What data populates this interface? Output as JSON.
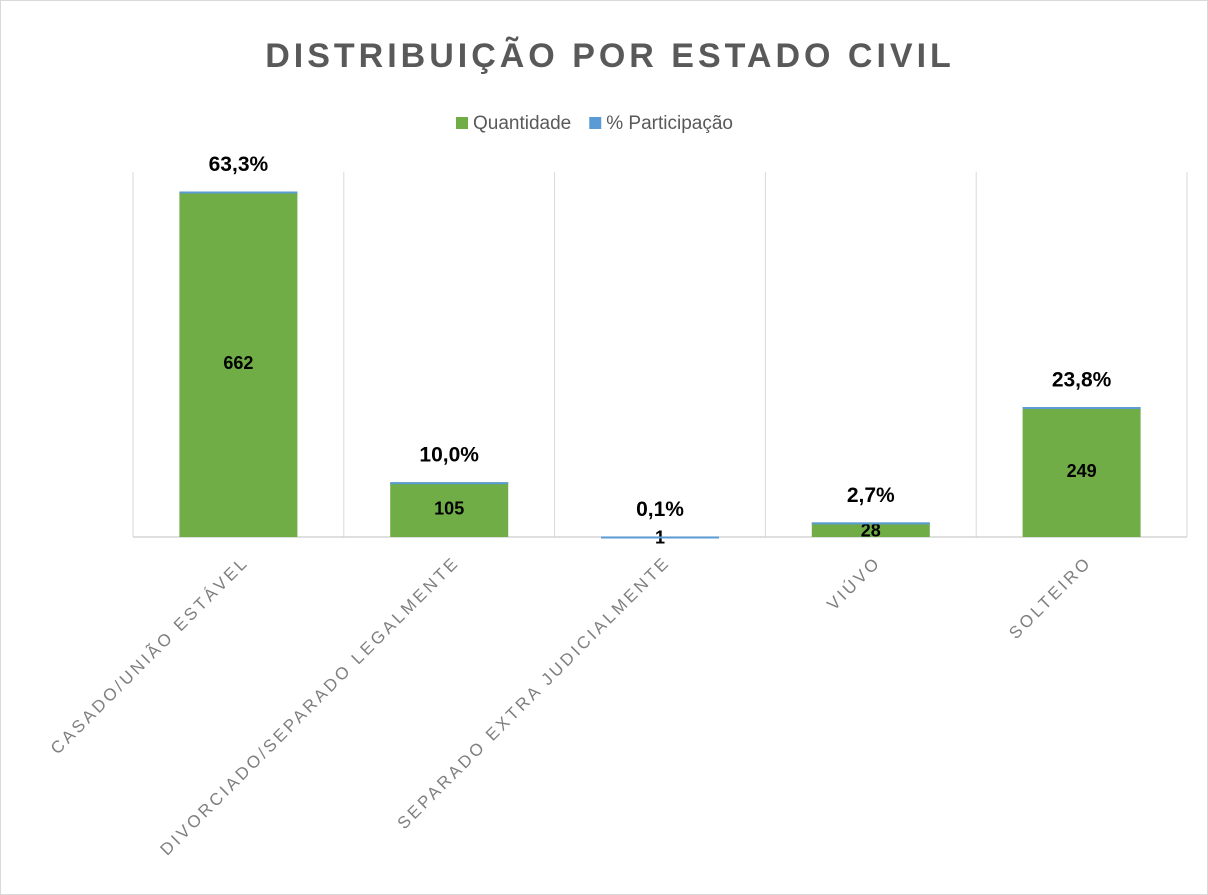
{
  "chart_data": {
    "type": "bar",
    "stacked": true,
    "title": "DISTRIBUIÇÃO POR ESTADO CIVIL",
    "categories": [
      "CASADO/UNIÃO ESTÁVEL",
      "DIVORCIADO/SEPARADO LEGALMENTE",
      "SEPARADO EXTRA JUDICIALMENTE",
      "VIÚVO",
      "SOLTEIRO"
    ],
    "series": [
      {
        "name": "Quantidade",
        "color": "#70ad47",
        "values": [
          662,
          105,
          1,
          28,
          249
        ]
      },
      {
        "name": "% Participação",
        "color": "#5b9bd5",
        "values": [
          0.633,
          0.1,
          0.001,
          0.027,
          0.238
        ],
        "value_labels": [
          "63,3%",
          "10,0%",
          "0,1%",
          "2,7%",
          "23,8%"
        ]
      }
    ],
    "ylim": [
      0,
      700
    ],
    "grid": true,
    "legend": "top"
  }
}
